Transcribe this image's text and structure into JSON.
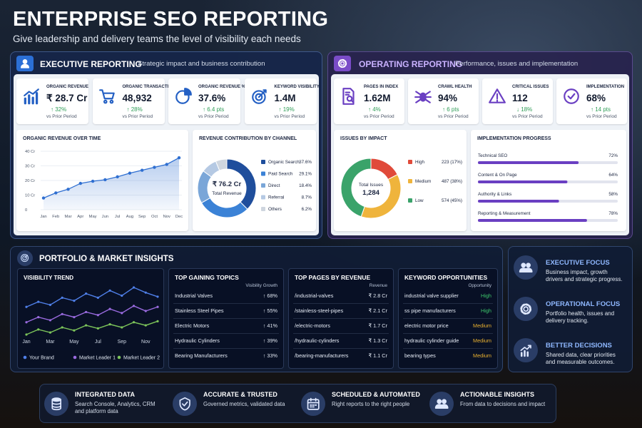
{
  "header": {
    "title": "ENTERPRISE SEO REPORTING",
    "subtitle": "Give leadership and delivery teams the level of visibility each needs"
  },
  "executive": {
    "title": "EXECUTIVE REPORTING",
    "subtitle": "Strategic impact and business contribution",
    "kpis": [
      {
        "label": "ORGANIC REVENUE",
        "value": "₹ 28.7 Cr",
        "delta": "↑ 32%",
        "note": "vs Prior Period"
      },
      {
        "label": "ORGANIC TRANSACTIONS",
        "value": "48,932",
        "delta": "↑ 28%",
        "note": "vs Prior Period"
      },
      {
        "label": "ORGANIC REVENUE %",
        "value": "37.6%",
        "delta": "↑ 6.4 pts",
        "note": "vs Prior Period"
      },
      {
        "label": "KEYWORD VISIBILITY",
        "value": "1.4M",
        "delta": "↑ 19%",
        "note": "vs Prior Period"
      }
    ],
    "revenue_chart": {
      "title": "ORGANIC REVENUE OVER TIME",
      "type": "line",
      "color": "#2f6fd1",
      "categories": [
        "Jan",
        "Feb",
        "Mar",
        "Apr",
        "May",
        "Jun",
        "Jul",
        "Aug",
        "Sep",
        "Oct",
        "Nov",
        "Dec"
      ],
      "values": [
        8,
        11.5,
        14,
        18,
        19.5,
        20.5,
        22.5,
        25,
        27,
        29,
        31,
        35.5
      ],
      "ylim": [
        0,
        40
      ],
      "yticks": [
        0,
        {
          "value": 10,
          "label": "10 Cr"
        },
        {
          "value": 20,
          "label": "20 Cr"
        },
        {
          "value": 30,
          "label": "30 Cr"
        },
        {
          "value": 40,
          "label": "40 Cr"
        }
      ],
      "grid": true
    },
    "contribution": {
      "title": "REVENUE CONTRIBUTION BY CHANNEL",
      "type": "pie",
      "center_value": "₹ 76.2 Cr",
      "center_label": "Total Revenue",
      "categories": [
        "Organic Search",
        "Paid Search",
        "Direct",
        "Referral",
        "Others"
      ],
      "values": [
        37.6,
        29.1,
        18.4,
        8.7,
        6.2
      ],
      "value_labels": [
        "37.6%",
        "29.1%",
        "18.4%",
        "8.7%",
        "6.2%"
      ],
      "colors": [
        "#1f4e9c",
        "#3b82d6",
        "#7aa6d8",
        "#b5c9e3",
        "#cfd6df"
      ]
    }
  },
  "operating": {
    "title": "OPERATING REPORTING",
    "subtitle": "Performance, issues and implementation",
    "kpis": [
      {
        "label": "PAGES IN INDEX",
        "value": "1.62M",
        "delta": "↑ 4%",
        "note": "vs Prior Period"
      },
      {
        "label": "CRAWL HEALTH",
        "value": "94%",
        "delta": "↑ 6 pts",
        "note": "vs Prior Period"
      },
      {
        "label": "CRITICAL ISSUES",
        "value": "112",
        "delta": "↓ 18%",
        "note": "vs Prior Period"
      },
      {
        "label": "IMPLEMENTATION",
        "value": "68%",
        "delta": "↑ 14 pts",
        "note": "vs Prior Period"
      }
    ],
    "issues": {
      "title": "ISSUES BY IMPACT",
      "type": "pie",
      "center_label": "Total Issues",
      "center_value": "1,284",
      "categories": [
        "High",
        "Medium",
        "Low"
      ],
      "values": [
        223,
        487,
        574
      ],
      "value_labels": [
        "223 (17%)",
        "487 (38%)",
        "574 (45%)"
      ],
      "colors": [
        "#e04a3a",
        "#efb43c",
        "#3aa36a"
      ]
    },
    "progress": {
      "title": "IMPLEMENTATION PROGRESS",
      "type": "bar",
      "categories": [
        "Technical SEO",
        "Content & On Page",
        "Authority & Links",
        "Reporting & Measurement"
      ],
      "values": [
        72,
        64,
        58,
        78
      ],
      "value_labels": [
        "72%",
        "64%",
        "58%",
        "78%"
      ],
      "xlim": [
        0,
        100
      ],
      "color": "#6a3fc2"
    }
  },
  "portfolio": {
    "title": "PORTFOLIO & MARKET INSIGHTS",
    "visibility": {
      "title": "VISIBILITY TREND",
      "type": "line",
      "categories": [
        "Jan",
        null,
        "Mar",
        null,
        "May",
        null,
        "Jul",
        null,
        "Sep",
        null,
        "Nov",
        null
      ],
      "series": [
        {
          "name": "Your Brand",
          "color": "#4f7fe8",
          "values": [
            62,
            67,
            64,
            71,
            68,
            75,
            71,
            78,
            73,
            81,
            76,
            72
          ]
        },
        {
          "name": "Market Leader 1",
          "color": "#9a6be0",
          "values": [
            47,
            52,
            49,
            55,
            52,
            57,
            54,
            60,
            56,
            63,
            58,
            62
          ]
        },
        {
          "name": "Market Leader 2",
          "color": "#7cc45a",
          "values": [
            35,
            40,
            37,
            42,
            39,
            44,
            41,
            45,
            42,
            47,
            44,
            48
          ]
        }
      ]
    },
    "topics": {
      "title": "TOP GAINING TOPICS",
      "column": "Visibility Growth",
      "rows": [
        [
          "Industrial Valves",
          "↑ 68%"
        ],
        [
          "Stainless Steel Pipes",
          "↑ 55%"
        ],
        [
          "Electric Motors",
          "↑ 41%"
        ],
        [
          "Hydraulic Cylinders",
          "↑ 39%"
        ],
        [
          "Bearing Manufacturers",
          "↑ 33%"
        ]
      ]
    },
    "pages": {
      "title": "TOP PAGES BY REVENUE",
      "column": "Revenue",
      "rows": [
        [
          "/industrial-valves",
          "₹ 2.8 Cr"
        ],
        [
          "/stainless-steel-pipes",
          "₹ 2.1 Cr"
        ],
        [
          "/electric-motors",
          "₹ 1.7 Cr"
        ],
        [
          "/hydraulic-cylinders",
          "₹ 1.3 Cr"
        ],
        [
          "/bearing-manufacturers",
          "₹ 1.1 Cr"
        ]
      ]
    },
    "keywords": {
      "title": "KEYWORD OPPORTUNITIES",
      "column": "Opportunity",
      "level_colors": {
        "High": "#3cc36a",
        "Medium": "#e8b030"
      },
      "rows": [
        [
          "industrial valve supplier",
          "High"
        ],
        [
          "ss pipe manufacturers",
          "High"
        ],
        [
          "electric motor price",
          "Medium"
        ],
        [
          "hydraulic cylinder guide",
          "Medium"
        ],
        [
          "bearing types",
          "Medium"
        ]
      ]
    }
  },
  "focus": [
    {
      "title": "EXECUTIVE FOCUS",
      "text": "Business impact, growth drivers and strategic progress."
    },
    {
      "title": "OPERATIONAL FOCUS",
      "text": "Portfolio health, issues and delivery tracking."
    },
    {
      "title": "BETTER DECISIONS",
      "text": "Shared data, clear priorities and measurable outcomes."
    }
  ],
  "features": [
    {
      "title": "INTEGRATED DATA",
      "text": "Search Console, Analytics, CRM and platform data"
    },
    {
      "title": "ACCURATE & TRUSTED",
      "text": "Governed metrics, validated data"
    },
    {
      "title": "SCHEDULED & AUTOMATED",
      "text": "Right reports to the right people"
    },
    {
      "title": "ACTIONABLE INSIGHTS",
      "text": "From data to decisions and impact"
    }
  ]
}
